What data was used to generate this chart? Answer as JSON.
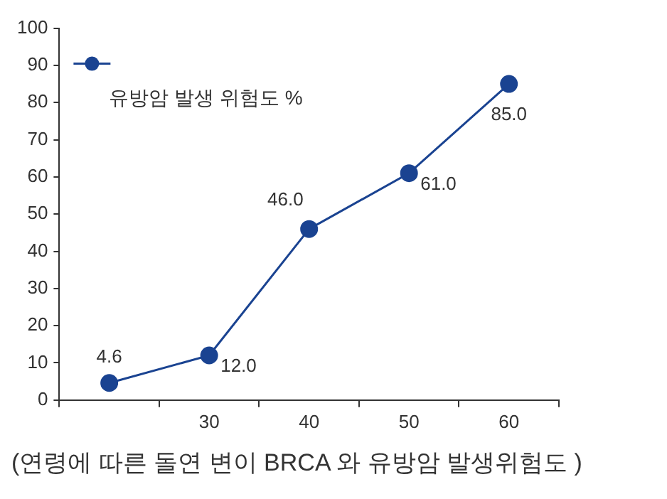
{
  "chart_data": {
    "type": "line",
    "categories": [
      null,
      "30",
      "40",
      "50",
      "60"
    ],
    "series": [
      {
        "name": "유방암 발생 위험도 %",
        "color": "#1a4391",
        "values": [
          4.6,
          12,
          46,
          61,
          85
        ],
        "value_labels": [
          "4.6",
          "12.0",
          "46.0",
          "61.0",
          "85.0"
        ]
      }
    ],
    "ylim": [
      0,
      100
    ],
    "yticks": [
      0,
      10,
      20,
      30,
      40,
      50,
      60,
      70,
      80,
      90,
      100
    ],
    "grid": false,
    "legend": "top left",
    "marker": "circle",
    "line_style": "solid",
    "annotations": [
      "(연령에 따른 돌연 변이 BRCA 와 유방암 발생위험도 )"
    ]
  }
}
